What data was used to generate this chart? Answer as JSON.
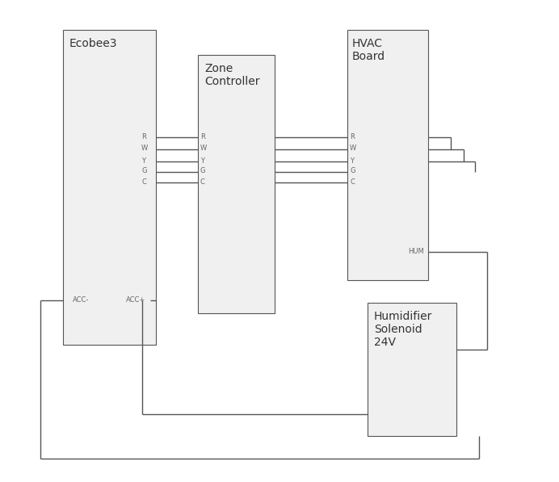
{
  "bg_color": "#ffffff",
  "box_fill": "#f0f0f0",
  "box_edge": "#555555",
  "line_color": "#555555",
  "text_color": "#666666",
  "title_color": "#333333",
  "ecobee_label": "Ecobee3",
  "zone_label": "Zone\nController",
  "hvac_label": "HVAC\nBoard",
  "hum_label": "Humidifier\nSolenoid\n24V",
  "wire_labels_ecobee": [
    "R",
    "W",
    "Y",
    "G",
    "C"
  ],
  "wire_labels_zone": [
    "R",
    "W",
    "Y",
    "G",
    "C"
  ],
  "wire_labels_hvac": [
    "R",
    "W",
    "Y",
    "G",
    "C"
  ],
  "acc_minus_label": "ACC-",
  "acc_plus_label": "ACC+",
  "hum_label_wire": "HUM"
}
